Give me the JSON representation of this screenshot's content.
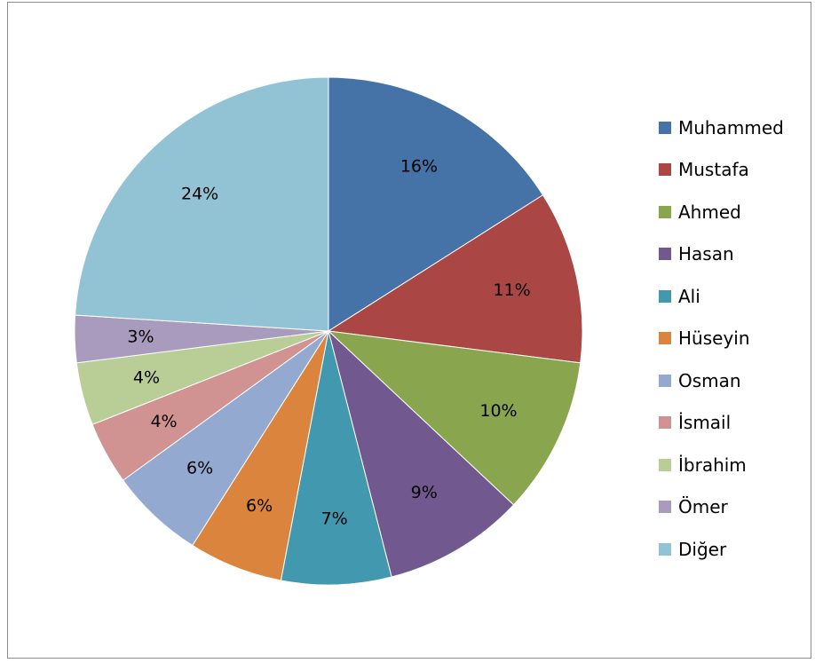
{
  "chart_data": {
    "type": "pie",
    "title": "",
    "legend_position": "right",
    "categories": [
      "Muhammed",
      "Mustafa",
      "Ahmed",
      "Hasan",
      "Ali",
      "Hüseyin",
      "Osman",
      "İsmail",
      "İbrahim",
      "Ömer",
      "Diğer"
    ],
    "values": [
      16,
      11,
      10,
      9,
      7,
      6,
      6,
      4,
      4,
      3,
      24
    ],
    "labels": [
      "16%",
      "11%",
      "10%",
      "9%",
      "7%",
      "6%",
      "6%",
      "4%",
      "4%",
      "3%",
      "24%"
    ],
    "colors": [
      "#4572A7",
      "#AA4643",
      "#89A54E",
      "#71588F",
      "#4198AF",
      "#DB843D",
      "#93A9CF",
      "#D19392",
      "#B9CD96",
      "#A99BBD",
      "#92C3D5"
    ]
  }
}
